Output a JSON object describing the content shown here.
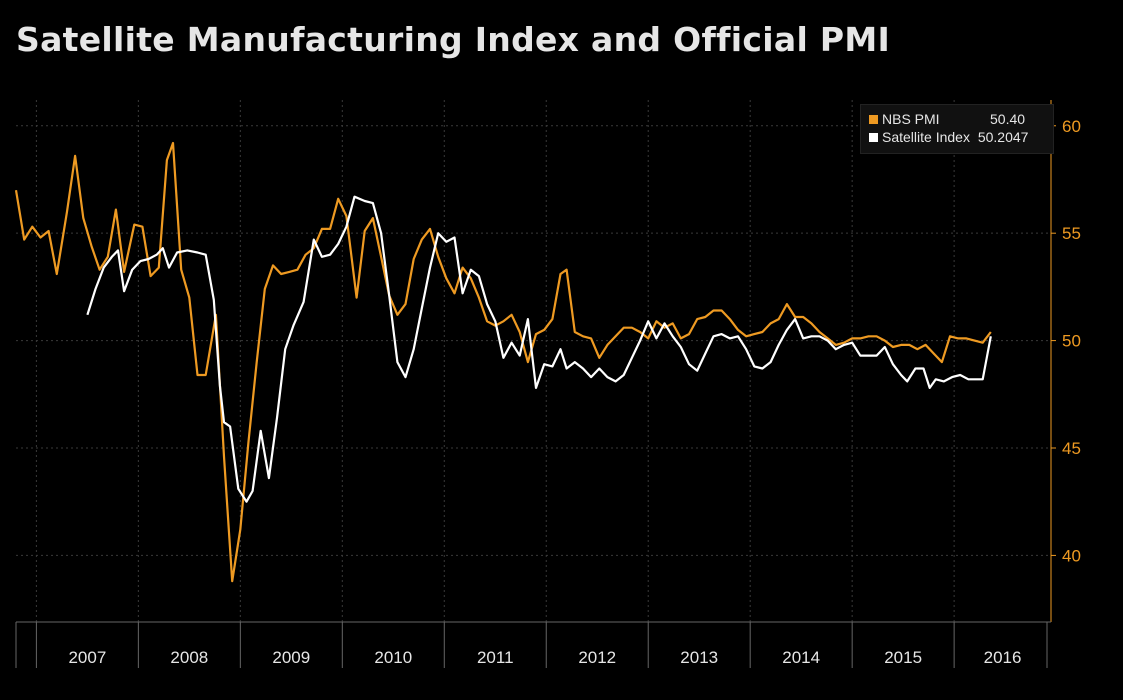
{
  "title": "Satellite Manufacturing Index and Official PMI",
  "colors": {
    "nbs": "#ee9a22",
    "satellite": "#ffffff",
    "axis": "#ee9a22",
    "grid": "#3a3a3a",
    "background": "#000000"
  },
  "legend": {
    "items": [
      {
        "label": "NBS PMI",
        "value": "50.40",
        "color": "#ee9a22"
      },
      {
        "label": "Satellite Index",
        "value": "50.2047",
        "color": "#ffffff"
      }
    ]
  },
  "chart_data": {
    "type": "line",
    "title": "Satellite Manufacturing Index and Official PMI",
    "y_axis_side": "right",
    "ylim": [
      36.9,
      61.2
    ],
    "yticks": [
      40,
      45,
      50,
      55,
      60
    ],
    "xlim": [
      2006.8,
      2016.95
    ],
    "x_tick_labels": [
      "2007",
      "2008",
      "2009",
      "2010",
      "2011",
      "2012",
      "2013",
      "2014",
      "2015",
      "2016"
    ],
    "grid": true,
    "legend_position": "top-right",
    "series": [
      {
        "name": "NBS PMI",
        "color": "#ee9a22",
        "points": [
          [
            2006.8,
            57.0
          ],
          [
            2006.88,
            54.7
          ],
          [
            2006.96,
            55.3
          ],
          [
            2007.04,
            54.8
          ],
          [
            2007.12,
            55.1
          ],
          [
            2007.2,
            53.1
          ],
          [
            2007.3,
            56.0
          ],
          [
            2007.38,
            58.6
          ],
          [
            2007.46,
            55.7
          ],
          [
            2007.54,
            54.4
          ],
          [
            2007.62,
            53.3
          ],
          [
            2007.7,
            53.9
          ],
          [
            2007.78,
            56.1
          ],
          [
            2007.86,
            53.2
          ],
          [
            2007.96,
            55.4
          ],
          [
            2008.04,
            55.3
          ],
          [
            2008.12,
            53.0
          ],
          [
            2008.2,
            53.4
          ],
          [
            2008.28,
            58.4
          ],
          [
            2008.34,
            59.2
          ],
          [
            2008.42,
            53.3
          ],
          [
            2008.5,
            52.0
          ],
          [
            2008.58,
            48.4
          ],
          [
            2008.66,
            48.4
          ],
          [
            2008.76,
            51.2
          ],
          [
            2008.84,
            44.6
          ],
          [
            2008.92,
            38.8
          ],
          [
            2009.0,
            41.2
          ],
          [
            2009.08,
            45.3
          ],
          [
            2009.16,
            49.0
          ],
          [
            2009.24,
            52.4
          ],
          [
            2009.32,
            53.5
          ],
          [
            2009.4,
            53.1
          ],
          [
            2009.48,
            53.2
          ],
          [
            2009.56,
            53.3
          ],
          [
            2009.64,
            54.0
          ],
          [
            2009.72,
            54.3
          ],
          [
            2009.8,
            55.2
          ],
          [
            2009.88,
            55.2
          ],
          [
            2009.96,
            56.6
          ],
          [
            2010.04,
            55.8
          ],
          [
            2010.14,
            52.0
          ],
          [
            2010.22,
            55.1
          ],
          [
            2010.3,
            55.7
          ],
          [
            2010.38,
            53.9
          ],
          [
            2010.46,
            52.1
          ],
          [
            2010.54,
            51.2
          ],
          [
            2010.62,
            51.7
          ],
          [
            2010.7,
            53.8
          ],
          [
            2010.78,
            54.7
          ],
          [
            2010.86,
            55.2
          ],
          [
            2010.94,
            53.9
          ],
          [
            2011.02,
            52.9
          ],
          [
            2011.1,
            52.2
          ],
          [
            2011.18,
            53.4
          ],
          [
            2011.26,
            52.9
          ],
          [
            2011.34,
            52.0
          ],
          [
            2011.42,
            50.9
          ],
          [
            2011.5,
            50.7
          ],
          [
            2011.58,
            50.9
          ],
          [
            2011.66,
            51.2
          ],
          [
            2011.74,
            50.4
          ],
          [
            2011.82,
            49.0
          ],
          [
            2011.9,
            50.3
          ],
          [
            2011.98,
            50.5
          ],
          [
            2012.06,
            51.0
          ],
          [
            2012.14,
            53.1
          ],
          [
            2012.2,
            53.3
          ],
          [
            2012.28,
            50.4
          ],
          [
            2012.36,
            50.2
          ],
          [
            2012.44,
            50.1
          ],
          [
            2012.52,
            49.2
          ],
          [
            2012.6,
            49.8
          ],
          [
            2012.68,
            50.2
          ],
          [
            2012.76,
            50.6
          ],
          [
            2012.84,
            50.6
          ],
          [
            2012.92,
            50.4
          ],
          [
            2013.0,
            50.1
          ],
          [
            2013.08,
            50.9
          ],
          [
            2013.16,
            50.6
          ],
          [
            2013.24,
            50.8
          ],
          [
            2013.32,
            50.1
          ],
          [
            2013.4,
            50.3
          ],
          [
            2013.48,
            51.0
          ],
          [
            2013.56,
            51.1
          ],
          [
            2013.64,
            51.4
          ],
          [
            2013.72,
            51.4
          ],
          [
            2013.8,
            51.0
          ],
          [
            2013.88,
            50.5
          ],
          [
            2013.96,
            50.2
          ],
          [
            2014.04,
            50.3
          ],
          [
            2014.12,
            50.4
          ],
          [
            2014.2,
            50.8
          ],
          [
            2014.28,
            51.0
          ],
          [
            2014.36,
            51.7
          ],
          [
            2014.44,
            51.1
          ],
          [
            2014.52,
            51.1
          ],
          [
            2014.6,
            50.8
          ],
          [
            2014.68,
            50.4
          ],
          [
            2014.76,
            50.1
          ],
          [
            2014.84,
            49.8
          ],
          [
            2014.92,
            49.9
          ],
          [
            2015.0,
            50.1
          ],
          [
            2015.08,
            50.1
          ],
          [
            2015.16,
            50.2
          ],
          [
            2015.24,
            50.2
          ],
          [
            2015.32,
            50.0
          ],
          [
            2015.4,
            49.7
          ],
          [
            2015.48,
            49.8
          ],
          [
            2015.56,
            49.8
          ],
          [
            2015.64,
            49.6
          ],
          [
            2015.72,
            49.8
          ],
          [
            2015.8,
            49.4
          ],
          [
            2015.88,
            49.0
          ],
          [
            2015.96,
            50.2
          ],
          [
            2016.04,
            50.1
          ],
          [
            2016.12,
            50.1
          ],
          [
            2016.2,
            50.0
          ],
          [
            2016.28,
            49.9
          ],
          [
            2016.36,
            50.4
          ]
        ]
      },
      {
        "name": "Satellite Index",
        "color": "#ffffff",
        "points": [
          [
            2007.5,
            51.2
          ],
          [
            2007.58,
            52.4
          ],
          [
            2007.66,
            53.4
          ],
          [
            2007.74,
            53.9
          ],
          [
            2007.8,
            54.2
          ],
          [
            2007.86,
            52.3
          ],
          [
            2007.94,
            53.3
          ],
          [
            2008.02,
            53.7
          ],
          [
            2008.1,
            53.8
          ],
          [
            2008.18,
            54.0
          ],
          [
            2008.24,
            54.3
          ],
          [
            2008.3,
            53.4
          ],
          [
            2008.38,
            54.1
          ],
          [
            2008.48,
            54.2
          ],
          [
            2008.58,
            54.1
          ],
          [
            2008.66,
            54.0
          ],
          [
            2008.74,
            51.9
          ],
          [
            2008.8,
            47.9
          ],
          [
            2008.84,
            46.2
          ],
          [
            2008.9,
            46.0
          ],
          [
            2008.98,
            43.1
          ],
          [
            2009.06,
            42.5
          ],
          [
            2009.12,
            43.0
          ],
          [
            2009.2,
            45.8
          ],
          [
            2009.28,
            43.6
          ],
          [
            2009.36,
            46.4
          ],
          [
            2009.44,
            49.6
          ],
          [
            2009.52,
            50.7
          ],
          [
            2009.62,
            51.8
          ],
          [
            2009.72,
            54.7
          ],
          [
            2009.8,
            53.9
          ],
          [
            2009.88,
            54.0
          ],
          [
            2009.96,
            54.5
          ],
          [
            2010.04,
            55.3
          ],
          [
            2010.12,
            56.7
          ],
          [
            2010.22,
            56.5
          ],
          [
            2010.3,
            56.4
          ],
          [
            2010.38,
            55.0
          ],
          [
            2010.46,
            52.1
          ],
          [
            2010.54,
            49.0
          ],
          [
            2010.62,
            48.3
          ],
          [
            2010.7,
            49.6
          ],
          [
            2010.78,
            51.5
          ],
          [
            2010.86,
            53.4
          ],
          [
            2010.94,
            55.0
          ],
          [
            2011.02,
            54.6
          ],
          [
            2011.1,
            54.8
          ],
          [
            2011.18,
            52.2
          ],
          [
            2011.26,
            53.3
          ],
          [
            2011.34,
            53.0
          ],
          [
            2011.42,
            51.7
          ],
          [
            2011.5,
            50.9
          ],
          [
            2011.58,
            49.2
          ],
          [
            2011.66,
            49.9
          ],
          [
            2011.74,
            49.3
          ],
          [
            2011.82,
            51.0
          ],
          [
            2011.9,
            47.8
          ],
          [
            2011.98,
            48.9
          ],
          [
            2012.06,
            48.8
          ],
          [
            2012.14,
            49.6
          ],
          [
            2012.2,
            48.7
          ],
          [
            2012.28,
            49.0
          ],
          [
            2012.36,
            48.7
          ],
          [
            2012.44,
            48.3
          ],
          [
            2012.52,
            48.7
          ],
          [
            2012.6,
            48.3
          ],
          [
            2012.68,
            48.1
          ],
          [
            2012.76,
            48.4
          ],
          [
            2012.84,
            49.2
          ],
          [
            2012.92,
            50.0
          ],
          [
            2013.0,
            50.9
          ],
          [
            2013.08,
            50.1
          ],
          [
            2013.16,
            50.8
          ],
          [
            2013.24,
            50.2
          ],
          [
            2013.32,
            49.7
          ],
          [
            2013.4,
            48.9
          ],
          [
            2013.48,
            48.6
          ],
          [
            2013.56,
            49.4
          ],
          [
            2013.64,
            50.2
          ],
          [
            2013.72,
            50.3
          ],
          [
            2013.8,
            50.1
          ],
          [
            2013.88,
            50.2
          ],
          [
            2013.96,
            49.6
          ],
          [
            2014.04,
            48.8
          ],
          [
            2014.12,
            48.7
          ],
          [
            2014.2,
            49.0
          ],
          [
            2014.28,
            49.8
          ],
          [
            2014.36,
            50.5
          ],
          [
            2014.44,
            51.0
          ],
          [
            2014.52,
            50.1
          ],
          [
            2014.6,
            50.2
          ],
          [
            2014.68,
            50.2
          ],
          [
            2014.76,
            50.0
          ],
          [
            2014.84,
            49.6
          ],
          [
            2014.92,
            49.8
          ],
          [
            2015.0,
            49.9
          ],
          [
            2015.08,
            49.3
          ],
          [
            2015.16,
            49.3
          ],
          [
            2015.24,
            49.3
          ],
          [
            2015.32,
            49.7
          ],
          [
            2015.4,
            48.9
          ],
          [
            2015.48,
            48.4
          ],
          [
            2015.54,
            48.1
          ],
          [
            2015.62,
            48.7
          ],
          [
            2015.7,
            48.7
          ],
          [
            2015.76,
            47.8
          ],
          [
            2015.82,
            48.2
          ],
          [
            2015.9,
            48.1
          ],
          [
            2015.98,
            48.3
          ],
          [
            2016.06,
            48.4
          ],
          [
            2016.14,
            48.2
          ],
          [
            2016.22,
            48.2
          ],
          [
            2016.28,
            48.2
          ],
          [
            2016.36,
            50.2
          ]
        ]
      }
    ]
  }
}
